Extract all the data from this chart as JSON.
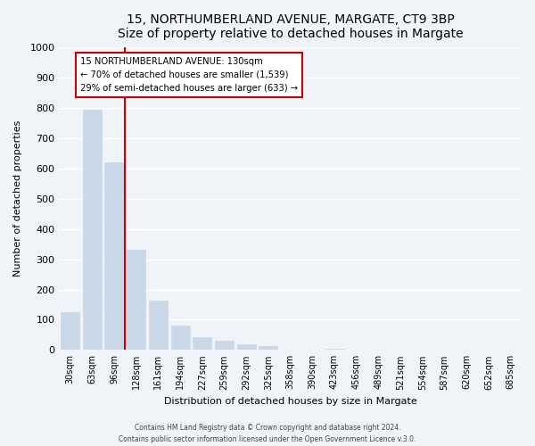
{
  "title": "15, NORTHUMBERLAND AVENUE, MARGATE, CT9 3BP",
  "subtitle": "Size of property relative to detached houses in Margate",
  "xlabel": "Distribution of detached houses by size in Margate",
  "ylabel": "Number of detached properties",
  "bar_labels": [
    "30sqm",
    "63sqm",
    "96sqm",
    "128sqm",
    "161sqm",
    "194sqm",
    "227sqm",
    "259sqm",
    "292sqm",
    "325sqm",
    "358sqm",
    "390sqm",
    "423sqm",
    "456sqm",
    "489sqm",
    "521sqm",
    "554sqm",
    "587sqm",
    "620sqm",
    "652sqm",
    "685sqm"
  ],
  "bar_values": [
    125,
    793,
    620,
    330,
    163,
    80,
    42,
    30,
    18,
    12,
    0,
    0,
    5,
    0,
    0,
    0,
    0,
    0,
    0,
    0,
    0
  ],
  "bar_color": "#c8d8e8",
  "annotation_title": "15 NORTHUMBERLAND AVENUE: 130sqm",
  "annotation_line1": "← 70% of detached houses are smaller (1,539)",
  "annotation_line2": "29% of semi-detached houses are larger (633) →",
  "annotation_box_color": "#ffffff",
  "annotation_box_edge": "#cc0000",
  "line_color": "#cc0000",
  "ylim": [
    0,
    1000
  ],
  "yticks": [
    0,
    100,
    200,
    300,
    400,
    500,
    600,
    700,
    800,
    900,
    1000
  ],
  "footer1": "Contains HM Land Registry data © Crown copyright and database right 2024.",
  "footer2": "Contains public sector information licensed under the Open Government Licence v.3.0.",
  "bg_color": "#f0f4f8"
}
